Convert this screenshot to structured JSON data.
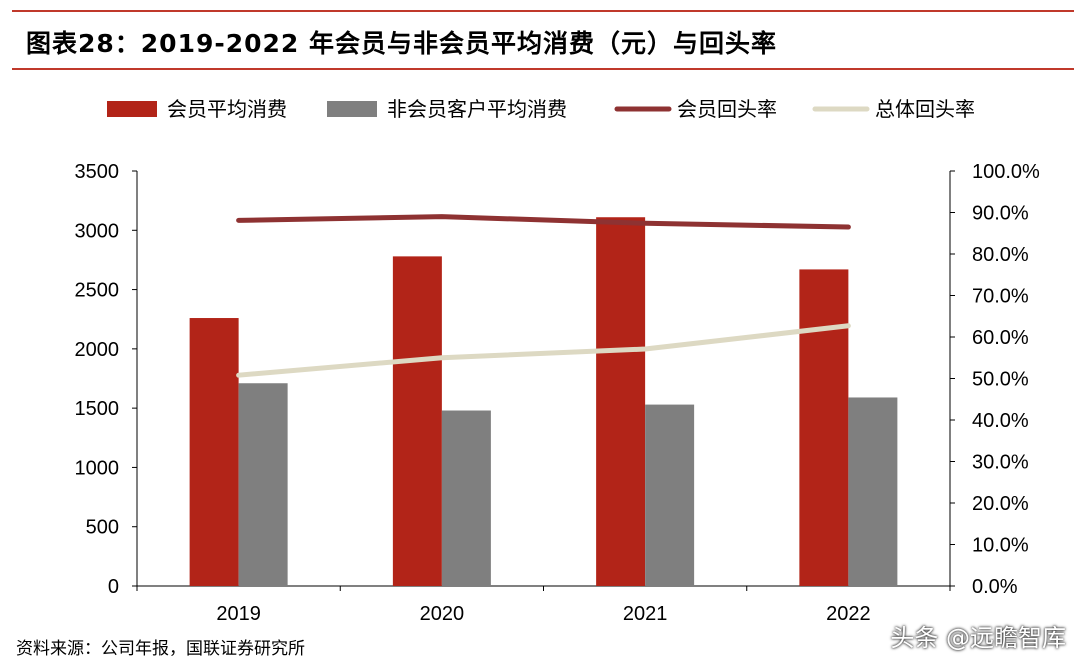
{
  "header": {
    "title": "图表28：2019-2022 年会员与非会员平均消费（元）与回头率"
  },
  "footer": {
    "source": "资料来源：公司年报，国联证券研究所",
    "watermark": "头条 @远瞻智库"
  },
  "chart_data": {
    "type": "bar",
    "title": "图表28：2019-2022 年会员与非会员平均消费（元）与回头率",
    "categories": [
      "2019",
      "2020",
      "2021",
      "2022"
    ],
    "series": [
      {
        "name": "会员平均消费",
        "kind": "bar",
        "axis": "left",
        "color": "#b22418",
        "values": [
          2260,
          2780,
          3110,
          2670
        ]
      },
      {
        "name": "非会员客户平均消费",
        "kind": "bar",
        "axis": "left",
        "color": "#7f7f7f",
        "values": [
          1710,
          1480,
          1530,
          1590
        ]
      },
      {
        "name": "会员回头率",
        "kind": "line",
        "axis": "right",
        "color": "#8e3232",
        "values": [
          0.881,
          0.89,
          0.874,
          0.865
        ]
      },
      {
        "name": "总体回头率",
        "kind": "line",
        "axis": "right",
        "color": "#ddd9c3",
        "values": [
          0.508,
          0.55,
          0.571,
          0.627
        ]
      }
    ],
    "y_left": {
      "ylim": [
        0,
        3500
      ],
      "ticks": [
        "0",
        "500",
        "1000",
        "1500",
        "2000",
        "2500",
        "3000",
        "3500"
      ]
    },
    "y_right": {
      "ylim": [
        0,
        1
      ],
      "ticks": [
        "0.0%",
        "10.0%",
        "20.0%",
        "30.0%",
        "40.0%",
        "50.0%",
        "60.0%",
        "70.0%",
        "80.0%",
        "90.0%",
        "100.0%"
      ]
    },
    "legend_position": "top",
    "grid": false
  }
}
